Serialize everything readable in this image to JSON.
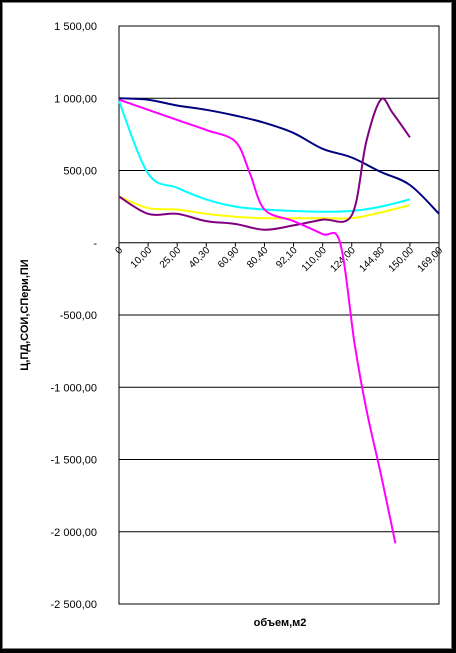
{
  "chart_data": {
    "type": "line",
    "title": "",
    "xlabel": "объем,м2",
    "ylabel": "Ц,ПД,СОИ,СПери,ПИ",
    "categories": [
      "0",
      "10,00",
      "25,00",
      "40,30",
      "60,90",
      "80,40",
      "92,10",
      "110,00",
      "124,00",
      "144,80",
      "150,00",
      "169,00"
    ],
    "y_ticks": [
      1500,
      1000,
      500,
      0,
      -500,
      -1000,
      -1500,
      -2000,
      -2500
    ],
    "y_tick_labels": [
      "1 500,00",
      "1 000,00",
      "500,00",
      "-",
      "-500,00",
      "-1 000,00",
      "-1 500,00",
      "-2 000,00",
      "-2 500,00"
    ],
    "ylim": [
      -2500,
      1500
    ],
    "grid": true,
    "legend": "none",
    "series": [
      {
        "color": "#000080",
        "x": [
          0,
          1,
          2,
          3,
          4,
          5,
          6,
          7,
          8,
          9,
          10,
          11
        ],
        "values": [
          1000,
          990,
          950,
          920,
          880,
          830,
          760,
          650,
          590,
          490,
          400,
          200
        ]
      },
      {
        "color": "#00FFFF",
        "x": [
          0,
          1,
          2,
          3,
          4,
          5,
          6,
          7,
          8,
          9,
          10
        ],
        "values": [
          980,
          480,
          380,
          300,
          250,
          230,
          220,
          215,
          220,
          250,
          300
        ]
      },
      {
        "color": "#FFFF00",
        "x": [
          0,
          1,
          2,
          3,
          4,
          5,
          6,
          7,
          8,
          9,
          10
        ],
        "values": [
          320,
          240,
          230,
          200,
          180,
          170,
          170,
          170,
          170,
          210,
          260
        ]
      },
      {
        "color": "#800080",
        "x": [
          0,
          1,
          2,
          3,
          4,
          5,
          6,
          7,
          8,
          8.5,
          9,
          9.4,
          10
        ],
        "values": [
          320,
          200,
          200,
          150,
          130,
          90,
          120,
          160,
          190,
          700,
          990,
          900,
          730
        ]
      },
      {
        "color": "#FF00FF",
        "x": [
          0,
          1,
          2,
          3,
          4,
          4.5,
          5,
          6,
          7,
          7.6,
          8.1,
          8.5,
          9,
          9.5
        ],
        "values": [
          990,
          920,
          850,
          780,
          700,
          480,
          230,
          150,
          60,
          0,
          -700,
          -1150,
          -1600,
          -2080
        ]
      }
    ]
  }
}
